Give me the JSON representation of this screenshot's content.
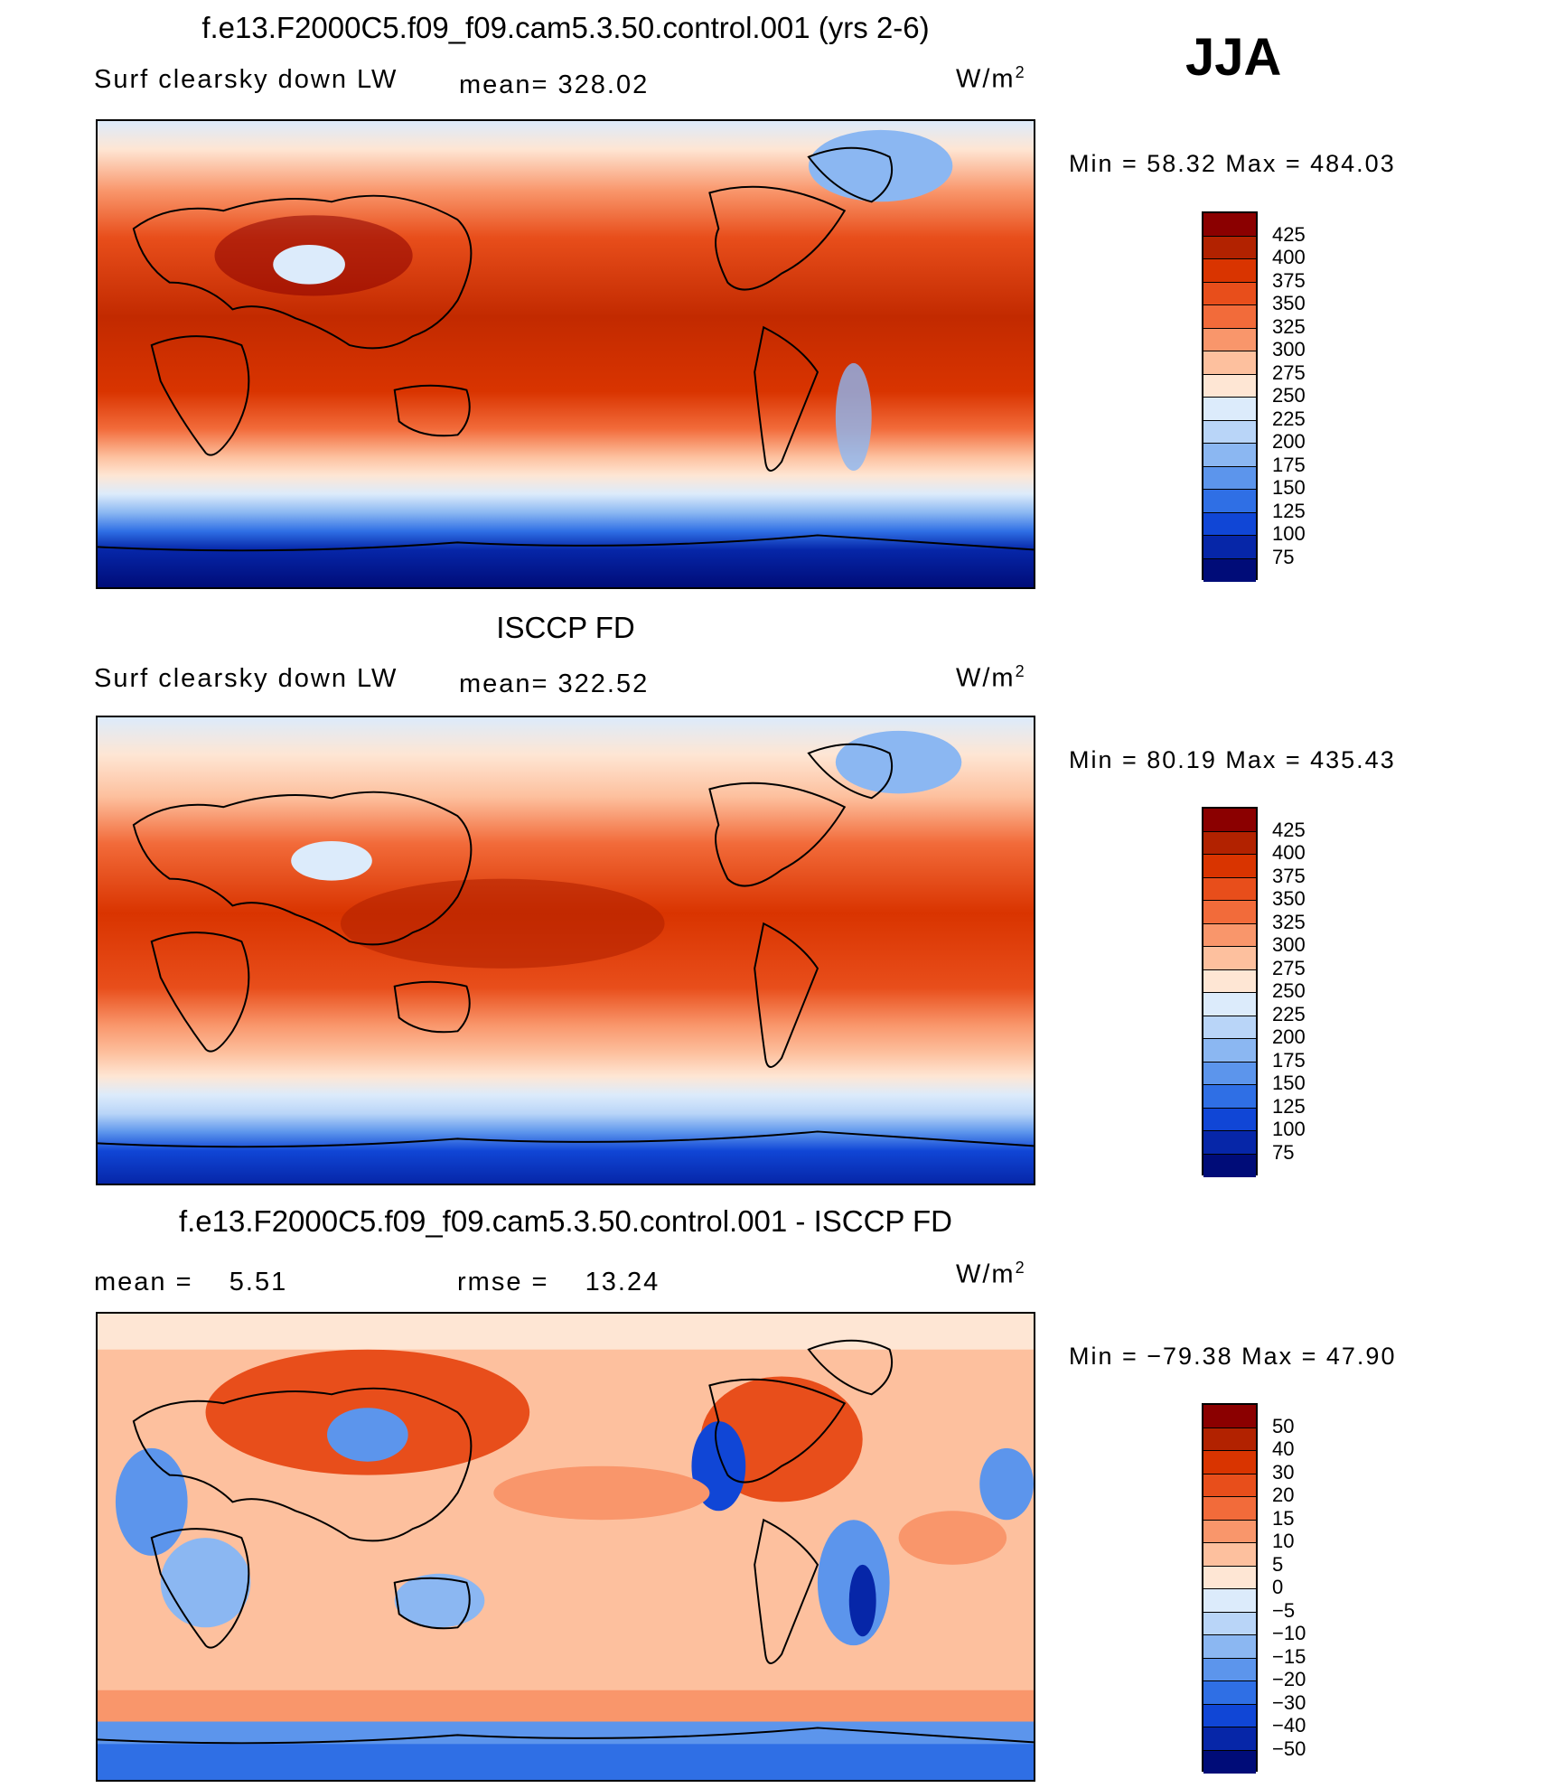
{
  "season": "JJA",
  "units": "W/m",
  "units_sup": "2",
  "panels": [
    {
      "title": "f.e13.F2000C5.f09_f09.cam5.3.50.control.001 (yrs 2-6)",
      "left_label": "Surf clearsky down LW",
      "stat1": "mean= 328.02",
      "stat2": "",
      "minmax": "Min =   58.32 Max = 484.03",
      "levels": [
        "425",
        "400",
        "375",
        "350",
        "325",
        "300",
        "275",
        "250",
        "225",
        "200",
        "175",
        "150",
        "125",
        "100",
        "75"
      ],
      "colors": [
        "#8B0000",
        "#B22200",
        "#D93400",
        "#E84E1B",
        "#F26B3A",
        "#F9966B",
        "#FDC09E",
        "#FEE6D4",
        "#DCEBFB",
        "#B9D5F8",
        "#8BB7F2",
        "#5C95EC",
        "#2F6FE5",
        "#1046D6",
        "#0626A8",
        "#000C78"
      ]
    },
    {
      "title": "ISCCP FD",
      "left_label": "Surf clearsky down LW",
      "stat1": "mean= 322.52",
      "stat2": "",
      "minmax": "Min =   80.19 Max = 435.43",
      "levels": [
        "425",
        "400",
        "375",
        "350",
        "325",
        "300",
        "275",
        "250",
        "225",
        "200",
        "175",
        "150",
        "125",
        "100",
        "75"
      ],
      "colors": [
        "#8B0000",
        "#B22200",
        "#D93400",
        "#E84E1B",
        "#F26B3A",
        "#F9966B",
        "#FDC09E",
        "#FEE6D4",
        "#DCEBFB",
        "#B9D5F8",
        "#8BB7F2",
        "#5C95EC",
        "#2F6FE5",
        "#1046D6",
        "#0626A8",
        "#000C78"
      ]
    },
    {
      "title": "f.e13.F2000C5.f09_f09.cam5.3.50.control.001 - ISCCP FD",
      "left_label": "mean =    5.51",
      "stat1": "",
      "stat2": "rmse =    13.24",
      "minmax": "Min = −79.38 Max =   47.90",
      "levels": [
        "50",
        "40",
        "30",
        "20",
        "15",
        "10",
        "5",
        "0",
        "−5",
        "−10",
        "−15",
        "−20",
        "−30",
        "−40",
        "−50"
      ],
      "colors": [
        "#8B0000",
        "#B22200",
        "#D93400",
        "#E84E1B",
        "#F26B3A",
        "#F9966B",
        "#FDC09E",
        "#FEE6D4",
        "#DCEBFB",
        "#B9D5F8",
        "#8BB7F2",
        "#5C95EC",
        "#2F6FE5",
        "#1046D6",
        "#0626A8",
        "#000C78"
      ]
    }
  ]
}
